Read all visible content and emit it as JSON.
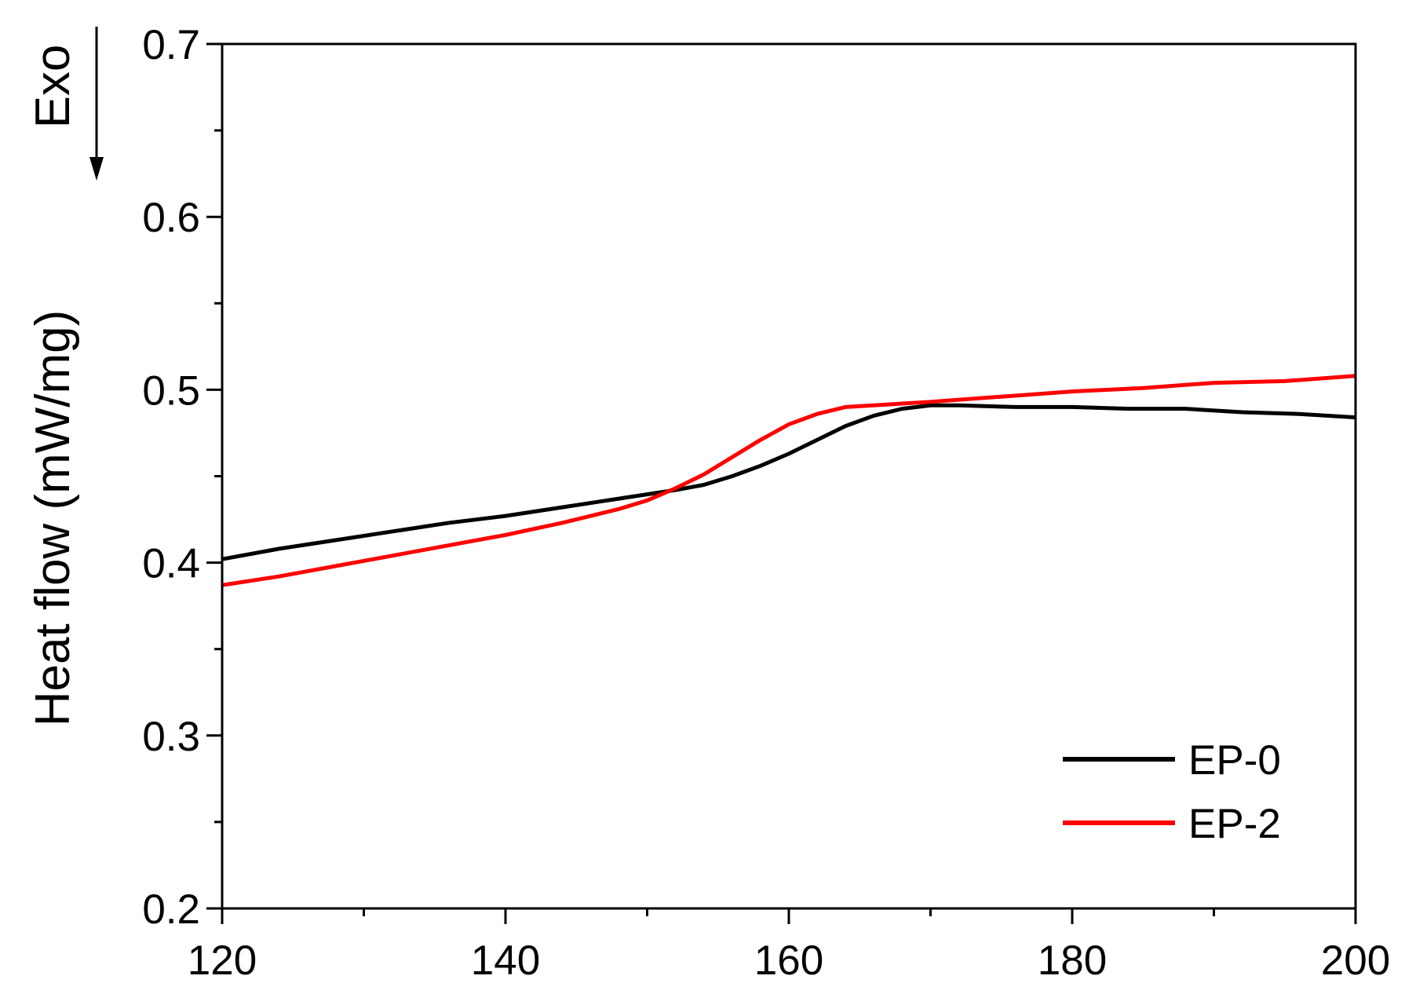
{
  "chart_data": {
    "type": "line",
    "y_label": "Heat flow (mW/mg)",
    "annotation": "Exo",
    "xlim": [
      120,
      200
    ],
    "xticks": [
      120,
      140,
      160,
      180,
      200
    ],
    "ylim": [
      0.2,
      0.7
    ],
    "yticks": [
      0.2,
      0.3,
      0.4,
      0.5,
      0.6,
      0.7
    ],
    "legend": "lower right",
    "series": [
      {
        "name": "EP-0",
        "color": "#000000",
        "x": [
          120,
          124,
          128,
          132,
          136,
          140,
          144,
          148,
          152,
          154,
          156,
          158,
          160,
          162,
          164,
          166,
          168,
          170,
          172,
          176,
          180,
          184,
          188,
          192,
          196,
          200
        ],
        "values": [
          0.402,
          0.408,
          0.413,
          0.418,
          0.423,
          0.427,
          0.432,
          0.437,
          0.442,
          0.445,
          0.45,
          0.456,
          0.463,
          0.471,
          0.479,
          0.485,
          0.489,
          0.491,
          0.491,
          0.49,
          0.49,
          0.489,
          0.489,
          0.487,
          0.486,
          0.484
        ]
      },
      {
        "name": "EP-2",
        "color": "#ff0000",
        "x": [
          120,
          124,
          128,
          132,
          136,
          140,
          144,
          148,
          150,
          152,
          154,
          156,
          158,
          160,
          162,
          164,
          166,
          170,
          175,
          180,
          185,
          190,
          195,
          200
        ],
        "values": [
          0.387,
          0.392,
          0.398,
          0.404,
          0.41,
          0.416,
          0.423,
          0.431,
          0.436,
          0.443,
          0.451,
          0.461,
          0.471,
          0.48,
          0.486,
          0.49,
          0.491,
          0.493,
          0.496,
          0.499,
          0.501,
          0.504,
          0.505,
          0.508
        ]
      }
    ]
  }
}
